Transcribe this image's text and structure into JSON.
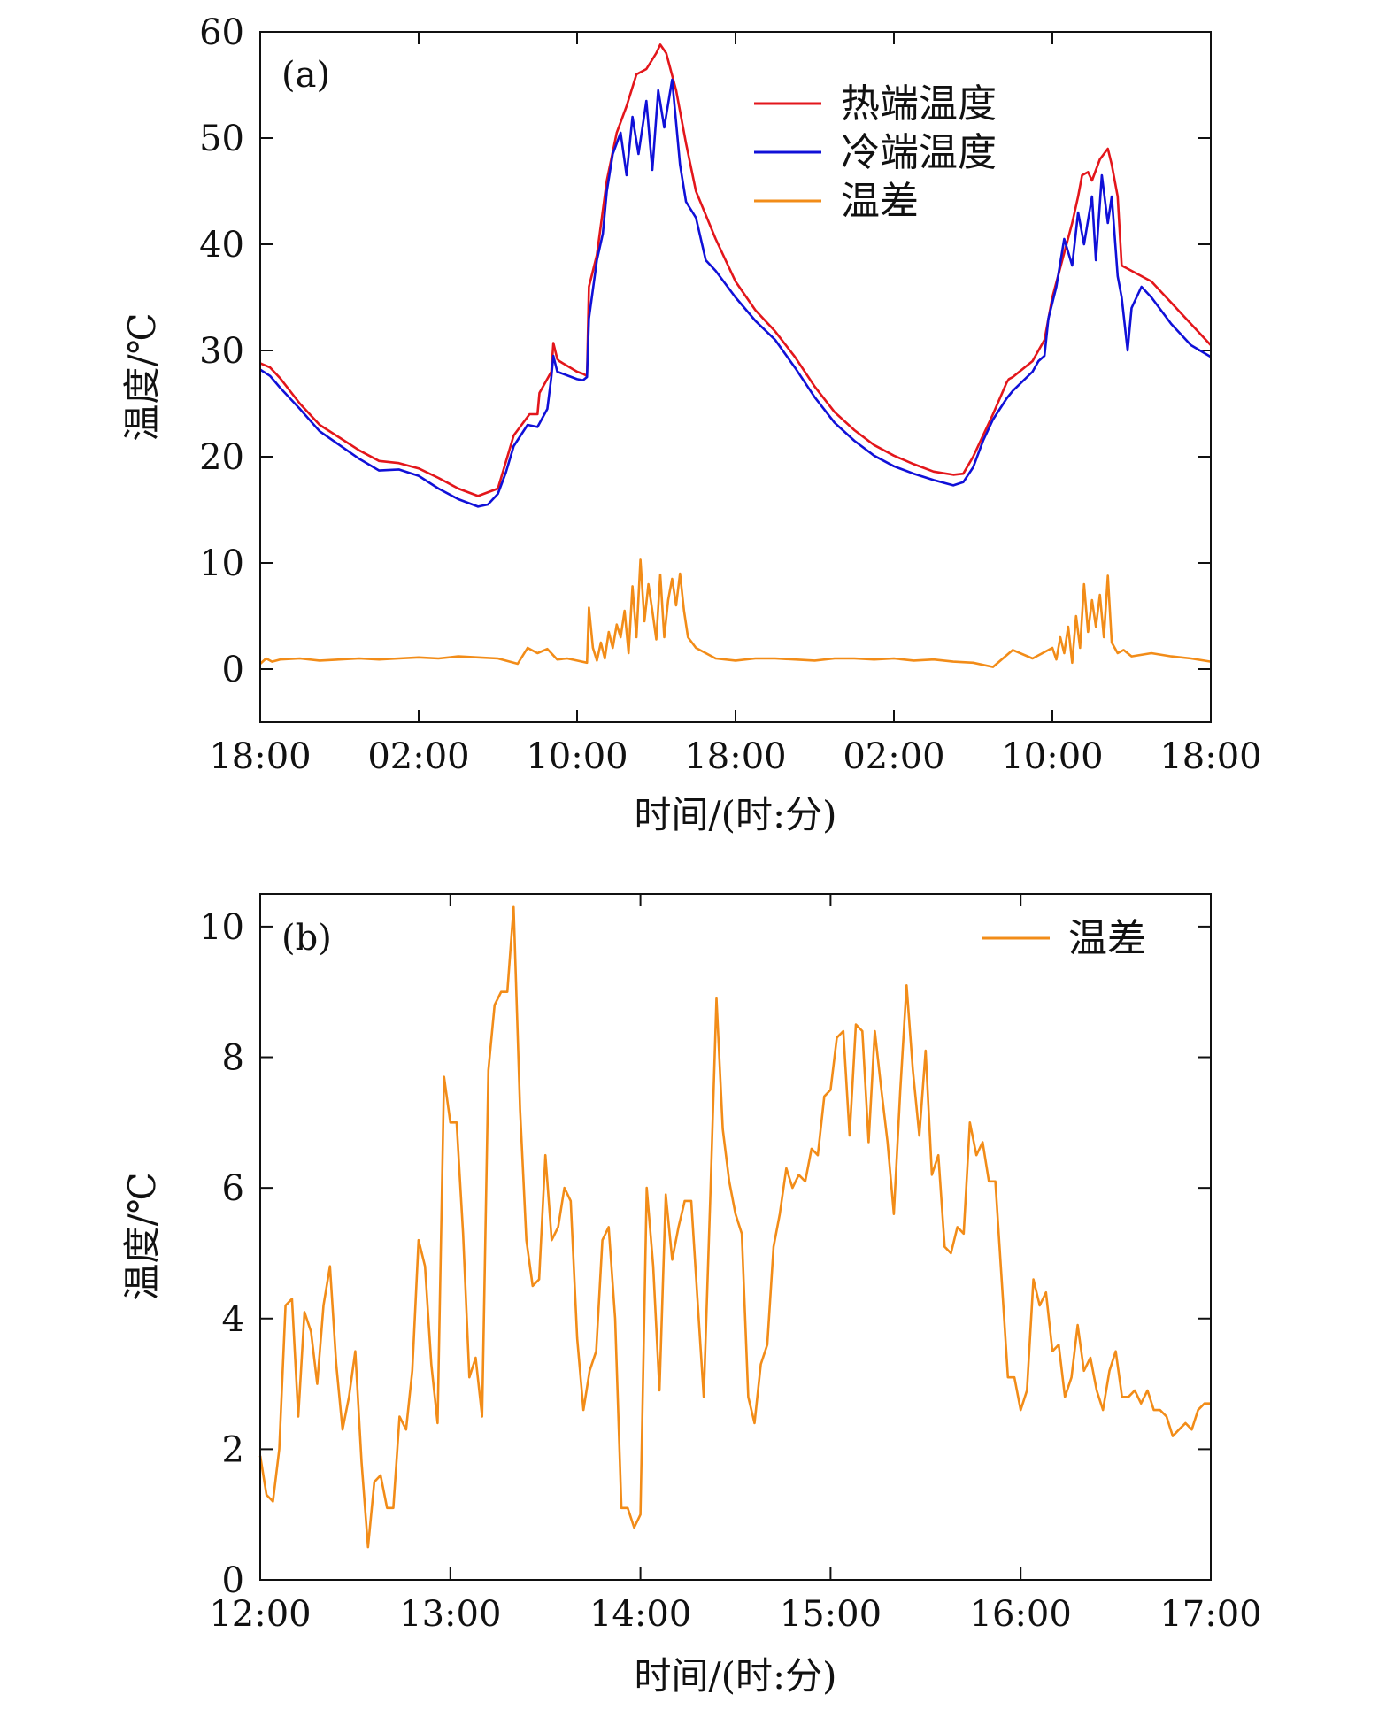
{
  "colors": {
    "hot": "#e3161b",
    "cold": "#1010d8",
    "diff": "#f28c18",
    "axis": "#111111"
  },
  "chart_data": [
    {
      "panel_label": "(a)",
      "type": "line",
      "ylabel": "温度/℃",
      "xlabel": "时间/(时:分)",
      "xtick_labels": [
        "18:00",
        "02:00",
        "10:00",
        "18:00",
        "02:00",
        "10:00",
        "18:00"
      ],
      "x_unit": "hours elapsed from first 18:00",
      "xlim": [
        0,
        48
      ],
      "ylim": [
        -5,
        60
      ],
      "yticks": [
        0,
        10,
        20,
        30,
        40,
        50,
        60
      ],
      "legend_position": "top-right",
      "series": [
        {
          "name": "热端温度",
          "color": "#e3161b",
          "x": [
            0,
            0.5,
            1,
            2,
            3,
            4,
            5,
            6,
            7,
            8,
            9,
            10,
            11,
            12,
            12.4,
            12.8,
            13.6,
            14,
            14.1,
            14.7,
            14.8,
            15,
            15.1,
            16,
            16.3,
            16.5,
            16.6,
            17,
            17.5,
            18,
            18.5,
            19,
            19.5,
            20,
            20.2,
            20.5,
            21,
            21.5,
            22,
            23,
            24,
            25,
            26,
            27,
            28,
            29,
            30,
            31,
            32,
            33,
            34,
            35,
            35.5,
            36,
            36.5,
            37,
            37.7,
            37.8,
            38,
            39,
            39.3,
            39.6,
            40,
            40.5,
            41,
            41.3,
            41.5,
            41.8,
            42,
            42.4,
            42.8,
            43,
            43.3,
            43.5,
            44,
            45,
            46,
            47,
            48
          ],
          "values": [
            28.8,
            28.4,
            27.4,
            25.0,
            23.0,
            21.8,
            20.6,
            19.6,
            19.4,
            18.9,
            18.0,
            17.0,
            16.3,
            17.0,
            19.5,
            22.0,
            24.0,
            24.0,
            26.0,
            28.0,
            30.7,
            29.2,
            29.0,
            28.0,
            27.8,
            27.6,
            36.0,
            39.0,
            46.0,
            50.5,
            53.0,
            56.0,
            56.5,
            58.0,
            58.8,
            58.0,
            54.5,
            49.5,
            45.0,
            40.5,
            36.5,
            33.8,
            31.8,
            29.4,
            26.6,
            24.2,
            22.5,
            21.1,
            20.1,
            19.3,
            18.6,
            18.3,
            18.4,
            20.0,
            22.0,
            24.0,
            27.0,
            27.3,
            27.5,
            29.0,
            30.0,
            31.0,
            35.0,
            38.5,
            42.0,
            44.5,
            46.5,
            46.8,
            46.0,
            48.0,
            49.0,
            47.5,
            44.5,
            38.0,
            37.5,
            36.5,
            34.5,
            32.5,
            30.5
          ]
        },
        {
          "name": "冷端温度",
          "color": "#1010d8",
          "x": [
            0,
            0.5,
            1,
            2,
            3,
            4,
            5,
            6,
            7,
            8,
            9,
            10,
            11,
            11.5,
            12,
            12.4,
            12.8,
            13.5,
            14,
            14.5,
            14.7,
            14.8,
            15,
            16,
            16.3,
            16.5,
            16.6,
            17,
            17.3,
            17.5,
            17.8,
            18.2,
            18.5,
            18.8,
            19.1,
            19.5,
            19.8,
            20.1,
            20.4,
            20.8,
            21.2,
            21.5,
            22,
            22.5,
            23,
            24,
            25,
            26,
            27,
            28,
            29,
            30,
            31,
            32,
            33,
            34,
            35,
            35.5,
            36,
            36.5,
            37,
            37.7,
            38,
            39,
            39.3,
            39.6,
            39.8,
            40.2,
            40.6,
            41,
            41.3,
            41.6,
            42,
            42.2,
            42.5,
            42.8,
            43,
            43.3,
            43.5,
            43.8,
            44,
            44.5,
            45,
            46,
            47,
            48
          ],
          "values": [
            28.2,
            27.6,
            26.5,
            24.5,
            22.4,
            21.1,
            19.8,
            18.7,
            18.8,
            18.2,
            17.0,
            16.0,
            15.3,
            15.5,
            16.5,
            18.5,
            21.0,
            23.0,
            22.8,
            24.5,
            27.5,
            29.5,
            28.0,
            27.3,
            27.2,
            27.5,
            33.0,
            38.5,
            41.0,
            45.0,
            48.5,
            50.5,
            46.5,
            52.0,
            48.5,
            53.5,
            47.0,
            54.5,
            51.0,
            55.5,
            47.5,
            44.0,
            42.5,
            38.5,
            37.5,
            35.0,
            32.8,
            31.0,
            28.4,
            25.6,
            23.2,
            21.5,
            20.1,
            19.1,
            18.4,
            17.8,
            17.3,
            17.6,
            19.0,
            21.5,
            23.5,
            25.5,
            26.2,
            28.0,
            29.0,
            29.5,
            33.0,
            36.0,
            40.5,
            38.0,
            43.0,
            40.0,
            44.5,
            38.5,
            46.5,
            42.0,
            44.5,
            37.0,
            35.0,
            30.0,
            34.0,
            36.0,
            35.0,
            32.5,
            30.5,
            29.4
          ]
        },
        {
          "name": "温差",
          "color": "#f28c18",
          "x": [
            0,
            0.3,
            0.6,
            1,
            2,
            3,
            4,
            5,
            6,
            7,
            8,
            9,
            10,
            11,
            12,
            13,
            13.5,
            14,
            14.5,
            15,
            15.5,
            16,
            16.5,
            16.6,
            16.8,
            17.0,
            17.2,
            17.4,
            17.6,
            17.8,
            18.0,
            18.2,
            18.4,
            18.6,
            18.8,
            19.0,
            19.2,
            19.4,
            19.6,
            19.8,
            20.0,
            20.2,
            20.4,
            20.6,
            20.8,
            21.0,
            21.2,
            21.4,
            21.6,
            21.8,
            22,
            23,
            24,
            25,
            26,
            27,
            28,
            29,
            30,
            31,
            32,
            33,
            34,
            35,
            36,
            37,
            38,
            39,
            39.5,
            40,
            40.2,
            40.4,
            40.6,
            40.8,
            41.0,
            41.2,
            41.4,
            41.6,
            41.8,
            42.0,
            42.2,
            42.4,
            42.6,
            42.8,
            43,
            43.3,
            43.6,
            44,
            45,
            46,
            47,
            48
          ],
          "values": [
            0.5,
            1.0,
            0.7,
            0.9,
            1.0,
            0.8,
            0.9,
            1.0,
            0.9,
            1.0,
            1.1,
            1.0,
            1.2,
            1.1,
            1.0,
            0.5,
            2.0,
            1.5,
            1.9,
            0.9,
            1.0,
            0.8,
            0.6,
            5.8,
            2.0,
            0.8,
            2.5,
            1.0,
            3.5,
            2.0,
            4.2,
            3.0,
            5.5,
            1.5,
            7.8,
            3.0,
            10.3,
            4.5,
            8.0,
            5.5,
            2.8,
            8.9,
            3.0,
            6.5,
            8.5,
            6.0,
            9.0,
            5.5,
            3.0,
            2.5,
            2.0,
            1.0,
            0.8,
            1.0,
            1.0,
            0.9,
            0.8,
            1.0,
            1.0,
            0.9,
            1.0,
            0.8,
            0.9,
            0.7,
            0.6,
            0.2,
            1.8,
            1.0,
            1.5,
            2.0,
            0.9,
            3.0,
            1.5,
            4.0,
            0.6,
            5.0,
            2.0,
            8.0,
            3.5,
            6.5,
            4.0,
            7.0,
            3.0,
            8.8,
            2.5,
            1.5,
            1.8,
            1.2,
            1.5,
            1.2,
            1.0,
            0.7
          ]
        }
      ]
    },
    {
      "panel_label": "(b)",
      "type": "line",
      "ylabel": "温度/℃",
      "xlabel": "时间/(时:分)",
      "xtick_labels": [
        "12:00",
        "13:00",
        "14:00",
        "15:00",
        "16:00",
        "17:00"
      ],
      "x_unit": "hours (clock time)",
      "xlim": [
        12,
        17
      ],
      "ylim": [
        0,
        10.5
      ],
      "yticks": [
        0,
        2,
        4,
        6,
        8,
        10
      ],
      "legend_position": "top-right",
      "series": [
        {
          "name": "温差",
          "color": "#f28c18",
          "x": [
            12.0,
            12.033,
            12.067,
            12.1,
            12.133,
            12.167,
            12.2,
            12.233,
            12.267,
            12.3,
            12.333,
            12.367,
            12.4,
            12.433,
            12.467,
            12.5,
            12.533,
            12.567,
            12.6,
            12.633,
            12.667,
            12.7,
            12.733,
            12.767,
            12.8,
            12.833,
            12.867,
            12.9,
            12.933,
            12.967,
            13.0,
            13.033,
            13.067,
            13.1,
            13.133,
            13.167,
            13.2,
            13.233,
            13.267,
            13.3,
            13.333,
            13.367,
            13.4,
            13.433,
            13.467,
            13.5,
            13.533,
            13.567,
            13.6,
            13.633,
            13.667,
            13.7,
            13.733,
            13.767,
            13.8,
            13.833,
            13.867,
            13.9,
            13.933,
            13.967,
            14.0,
            14.033,
            14.067,
            14.1,
            14.133,
            14.167,
            14.2,
            14.233,
            14.267,
            14.3,
            14.333,
            14.367,
            14.4,
            14.433,
            14.467,
            14.5,
            14.533,
            14.567,
            14.6,
            14.633,
            14.667,
            14.7,
            14.733,
            14.767,
            14.8,
            14.833,
            14.867,
            14.9,
            14.933,
            14.967,
            15.0,
            15.033,
            15.067,
            15.1,
            15.133,
            15.167,
            15.2,
            15.233,
            15.267,
            15.3,
            15.333,
            15.367,
            15.4,
            15.433,
            15.467,
            15.5,
            15.533,
            15.567,
            15.6,
            15.633,
            15.667,
            15.7,
            15.733,
            15.767,
            15.8,
            15.833,
            15.867,
            15.9,
            15.933,
            15.967,
            16.0,
            16.033,
            16.067,
            16.1,
            16.133,
            16.167,
            16.2,
            16.233,
            16.267,
            16.3,
            16.333,
            16.367,
            16.4,
            16.433,
            16.467,
            16.5,
            16.533,
            16.567,
            16.6,
            16.633,
            16.667,
            16.7,
            16.733,
            16.767,
            16.8,
            16.833,
            16.867,
            16.9,
            16.933,
            16.967,
            17.0
          ],
          "values": [
            1.9,
            1.3,
            1.2,
            2.0,
            4.2,
            4.3,
            2.5,
            4.1,
            3.8,
            3.0,
            4.2,
            4.8,
            3.3,
            2.3,
            2.8,
            3.5,
            1.8,
            0.5,
            1.5,
            1.6,
            1.1,
            1.1,
            2.5,
            2.3,
            3.2,
            5.2,
            4.8,
            3.3,
            2.4,
            7.7,
            7.0,
            7.0,
            5.3,
            3.1,
            3.4,
            2.5,
            7.8,
            8.8,
            9.0,
            9.0,
            10.3,
            7.2,
            5.2,
            4.5,
            4.6,
            6.5,
            5.2,
            5.4,
            6.0,
            5.8,
            3.7,
            2.6,
            3.2,
            3.5,
            5.2,
            5.4,
            4.0,
            1.1,
            1.1,
            0.8,
            1.0,
            6.0,
            4.8,
            2.9,
            5.9,
            4.9,
            5.4,
            5.8,
            5.8,
            4.3,
            2.8,
            5.8,
            8.9,
            6.9,
            6.1,
            5.6,
            5.3,
            2.8,
            2.4,
            3.3,
            3.6,
            5.1,
            5.6,
            6.3,
            6.0,
            6.2,
            6.1,
            6.6,
            6.5,
            7.4,
            7.5,
            8.3,
            8.4,
            6.8,
            8.5,
            8.4,
            6.7,
            8.4,
            7.5,
            6.7,
            5.6,
            7.5,
            9.1,
            7.8,
            6.8,
            8.1,
            6.2,
            6.5,
            5.1,
            5.0,
            5.4,
            5.3,
            7.0,
            6.5,
            6.7,
            6.1,
            6.1,
            4.6,
            3.1,
            3.1,
            2.6,
            2.9,
            4.6,
            4.2,
            4.4,
            3.5,
            3.6,
            2.8,
            3.1,
            3.9,
            3.2,
            3.4,
            2.9,
            2.6,
            3.2,
            3.5,
            2.8,
            2.8,
            2.9,
            2.7,
            2.9,
            2.6,
            2.6,
            2.5,
            2.2,
            2.3,
            2.4,
            2.3,
            2.6,
            2.7,
            2.7
          ]
        }
      ]
    }
  ]
}
